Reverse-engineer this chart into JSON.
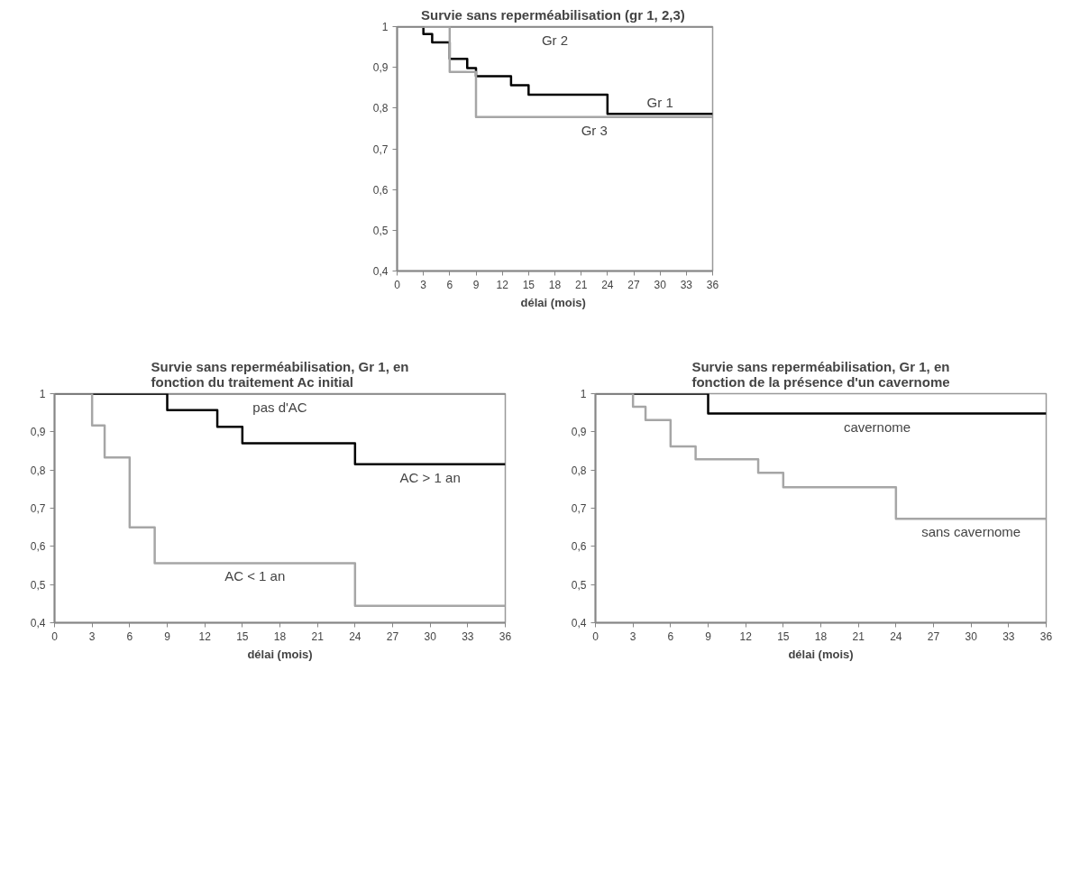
{
  "chart_data": [
    {
      "type": "step",
      "title": "Survie sans reperméabilisation (gr  1, 2,3)",
      "xlabel": "délai  (mois)",
      "xlim": [
        0,
        36
      ],
      "xticks": [
        0,
        3,
        6,
        9,
        12,
        15,
        18,
        21,
        24,
        27,
        30,
        33,
        36
      ],
      "ylim": [
        0.4,
        1
      ],
      "yticks": [
        {
          "value": 0.4,
          "label": "0,4"
        },
        {
          "value": 0.5,
          "label": "0,5"
        },
        {
          "value": 0.6,
          "label": "0,6"
        },
        {
          "value": 0.7,
          "label": "0,7"
        },
        {
          "value": 0.8,
          "label": "0,8"
        },
        {
          "value": 0.9,
          "label": "0,9"
        },
        1
      ],
      "grid": false,
      "series": [
        {
          "name": "Gr 1",
          "color": "#000000",
          "x": [
            0,
            3,
            4,
            6,
            8,
            9,
            13,
            15,
            24,
            36
          ],
          "values": [
            1,
            0.982,
            0.961,
            0.921,
            0.898,
            0.878,
            0.856,
            0.833,
            0.786,
            0.786
          ]
        },
        {
          "name": "Gr 2",
          "color": "#7f7f7f",
          "x": [
            0,
            36
          ],
          "values": [
            1,
            1
          ]
        },
        {
          "name": "Gr 3",
          "color": "#a6a6a6",
          "x": [
            0,
            6,
            9,
            36
          ],
          "values": [
            1,
            0.889,
            0.778,
            0.778
          ]
        }
      ]
    },
    {
      "type": "step",
      "title": "Survie sans reperméabilisation, Gr 1, en\nfonction du traitement Ac initial",
      "xlabel": "délai (mois)",
      "xlim": [
        0,
        36
      ],
      "xticks": [
        0,
        3,
        6,
        9,
        12,
        15,
        18,
        21,
        24,
        27,
        30,
        33,
        36
      ],
      "ylim": [
        0.4,
        1
      ],
      "yticks": [
        {
          "value": 0.4,
          "label": "0,4"
        },
        {
          "value": 0.5,
          "label": "0,5"
        },
        {
          "value": 0.6,
          "label": "0,6"
        },
        {
          "value": 0.7,
          "label": "0,7"
        },
        {
          "value": 0.8,
          "label": "0,8"
        },
        {
          "value": 0.9,
          "label": "0,9"
        },
        1
      ],
      "grid": false,
      "series": [
        {
          "name": "pas d'AC",
          "color": "#7f7f7f",
          "x": [
            0,
            36
          ],
          "values": [
            1,
            1
          ]
        },
        {
          "name": "AC > 1 an",
          "color": "#000000",
          "x": [
            0,
            9,
            13,
            15,
            24,
            36
          ],
          "values": [
            1,
            0.957,
            0.913,
            0.87,
            0.815,
            0.815
          ]
        },
        {
          "name": "AC < 1 an",
          "color": "#a6a6a6",
          "x": [
            0,
            3,
            4,
            6,
            8,
            24,
            36
          ],
          "values": [
            1,
            0.917,
            0.833,
            0.65,
            0.556,
            0.444,
            0.444
          ]
        }
      ]
    },
    {
      "type": "step",
      "title": "Survie sans reperméabilisation, Gr 1, en\nfonction de la présence d'un cavernome",
      "xlabel": "délai (mois)",
      "xlim": [
        0,
        36
      ],
      "xticks": [
        0,
        3,
        6,
        9,
        12,
        15,
        18,
        21,
        24,
        27,
        30,
        33,
        36
      ],
      "ylim": [
        0.4,
        1
      ],
      "yticks": [
        {
          "value": 0.4,
          "label": "0,4"
        },
        {
          "value": 0.5,
          "label": "0,5"
        },
        {
          "value": 0.6,
          "label": "0,6"
        },
        {
          "value": 0.7,
          "label": "0,7"
        },
        {
          "value": 0.8,
          "label": "0,8"
        },
        {
          "value": 0.9,
          "label": "0,9"
        },
        1
      ],
      "grid": false,
      "series": [
        {
          "name": "cavernome",
          "color": "#000000",
          "x": [
            0,
            9,
            36
          ],
          "values": [
            1,
            0.948,
            0.948
          ]
        },
        {
          "name": "sans cavernome",
          "color": "#a6a6a6",
          "x": [
            0,
            3,
            4,
            6,
            8,
            13,
            15,
            24,
            36
          ],
          "values": [
            1,
            0.966,
            0.931,
            0.862,
            0.828,
            0.793,
            0.755,
            0.672,
            0.672
          ]
        }
      ]
    }
  ]
}
